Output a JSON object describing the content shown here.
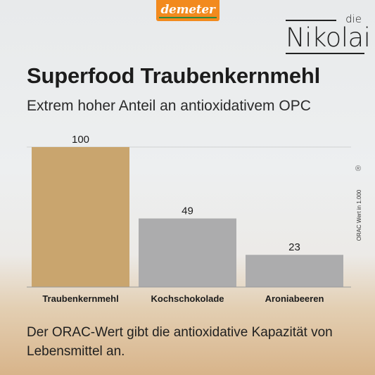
{
  "badge": {
    "brand": "demeter"
  },
  "logo": {
    "prefix": "die",
    "name": "Nikolai"
  },
  "colors": {
    "highlight_bar": "#c9a56e",
    "other_bars": "#acacad",
    "demeter_orange": "#f28a1e",
    "demeter_green": "#2d8a3e"
  },
  "chart_data": {
    "type": "bar",
    "title": "Superfood Traubenkernmehl",
    "subtitle": "Extrem hoher Anteil an antioxidativem OPC",
    "categories": [
      "Traubenkernmehl",
      "Kochschokolade",
      "Aroniabeeren"
    ],
    "values": [
      100,
      49,
      23
    ],
    "data_labels": [
      "100",
      "49",
      "23"
    ],
    "ylabel": "ORAC Wert in 1.000",
    "ylim": [
      0,
      100
    ],
    "grid": false,
    "legend": "none",
    "highlight_index": 0,
    "mark": "®"
  },
  "footnote": "Der ORAC-Wert gibt die antioxidative Kapazität von Lebensmittel an."
}
